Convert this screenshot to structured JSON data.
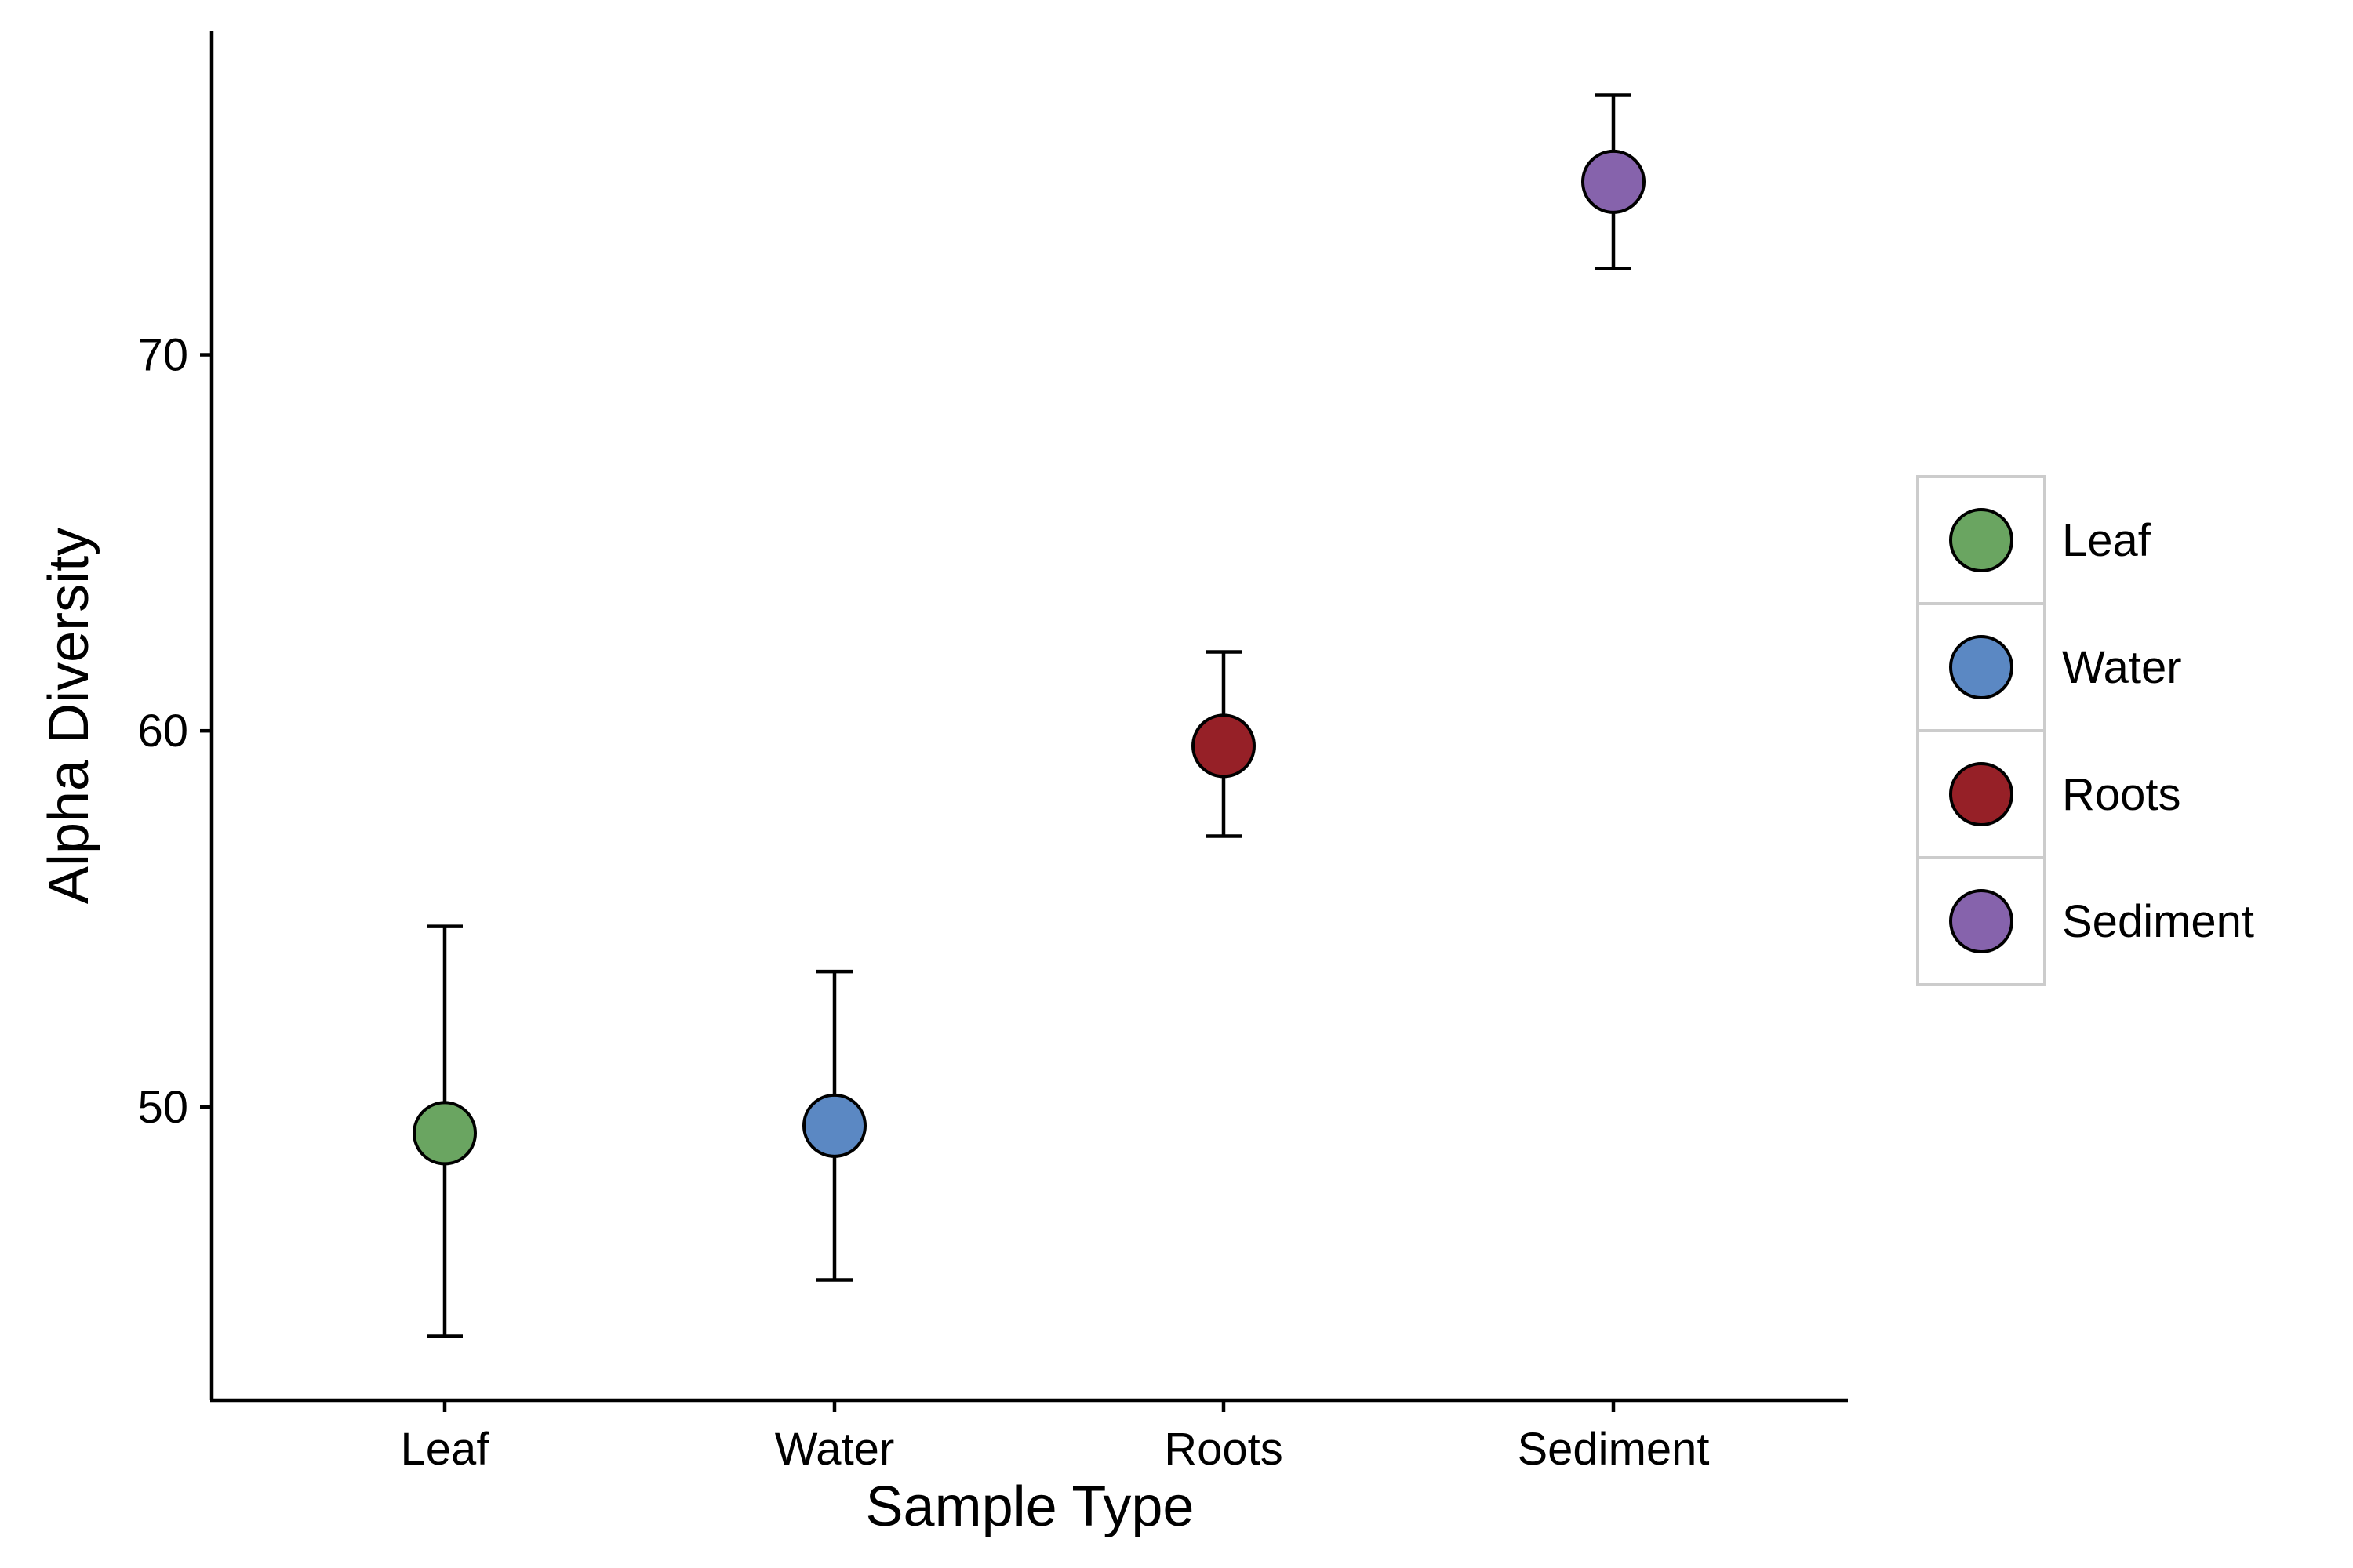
{
  "chart_data": {
    "type": "scatter",
    "xlabel": "Sample Type",
    "ylabel": "Alpha Diversity",
    "categories": [
      "Leaf",
      "Water",
      "Roots",
      "Sediment"
    ],
    "series": [
      {
        "category": "Leaf",
        "value": 49.3,
        "lower": 43.9,
        "upper": 54.8,
        "color": "#6aa561"
      },
      {
        "category": "Water",
        "value": 49.5,
        "lower": 45.4,
        "upper": 53.6,
        "color": "#5b88c3"
      },
      {
        "category": "Roots",
        "value": 59.6,
        "lower": 57.2,
        "upper": 62.1,
        "color": "#962027"
      },
      {
        "category": "Sediment",
        "value": 74.6,
        "lower": 72.3,
        "upper": 76.9,
        "color": "#8663ac"
      }
    ],
    "yticks": [
      50,
      60,
      70
    ],
    "ylim": [
      42.2,
      78.6
    ],
    "legend": {
      "position": "right",
      "entries": [
        "Leaf",
        "Water",
        "Roots",
        "Sediment"
      ]
    },
    "grid": false
  }
}
